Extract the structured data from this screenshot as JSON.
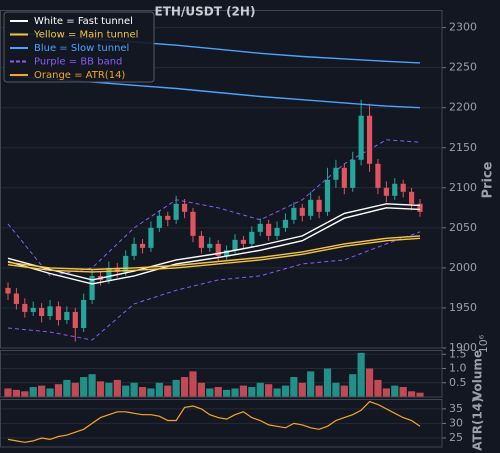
{
  "chart_data": [
    {
      "type": "candlestick",
      "title": "ETH/USDT (2H)",
      "ylabel": "Price",
      "up_color": "#26a69a",
      "down_color": "#e0545f",
      "grid": true,
      "ylim": [
        1900,
        2322
      ],
      "yticks": [
        1900,
        1950,
        2000,
        2050,
        2100,
        2150,
        2200,
        2250,
        2300
      ],
      "open": [
        1975,
        1968,
        1955,
        1945,
        1950,
        1940,
        1952,
        1935,
        1945,
        1925,
        1960,
        1990,
        1985,
        2000,
        1995,
        2015,
        2030,
        2025,
        2050,
        2065,
        2060,
        2080,
        2070,
        2040,
        2025,
        2030,
        2015,
        2022,
        2035,
        2030,
        2045,
        2055,
        2040,
        2050,
        2060,
        2075,
        2065,
        2085,
        2070,
        2110,
        2125,
        2100,
        2135,
        2190,
        2130,
        2100,
        2090,
        2105,
        2095,
        2080
      ],
      "high": [
        1982,
        1975,
        1962,
        1958,
        1956,
        1960,
        1958,
        1952,
        1950,
        1968,
        1998,
        1996,
        2008,
        2006,
        2022,
        2038,
        2036,
        2058,
        2072,
        2070,
        2090,
        2086,
        2075,
        2046,
        2038,
        2035,
        2028,
        2042,
        2040,
        2052,
        2062,
        2060,
        2058,
        2068,
        2082,
        2080,
        2095,
        2090,
        2125,
        2135,
        2130,
        2145,
        2210,
        2205,
        2136,
        2108,
        2112,
        2110,
        2100,
        2086
      ],
      "low": [
        1960,
        1948,
        1938,
        1940,
        1932,
        1935,
        1928,
        1930,
        1908,
        1920,
        1955,
        1978,
        1980,
        1988,
        1990,
        2010,
        2018,
        2020,
        2045,
        2052,
        2055,
        2062,
        2032,
        2018,
        2020,
        2008,
        2010,
        2018,
        2024,
        2026,
        2040,
        2034,
        2035,
        2045,
        2055,
        2058,
        2060,
        2062,
        2065,
        2100,
        2092,
        2095,
        2128,
        2120,
        2092,
        2082,
        2085,
        2088,
        2072,
        2064
      ],
      "close": [
        1968,
        1955,
        1945,
        1950,
        1940,
        1952,
        1935,
        1945,
        1925,
        1960,
        1990,
        1985,
        2000,
        1995,
        2015,
        2030,
        2025,
        2050,
        2065,
        2060,
        2080,
        2070,
        2040,
        2025,
        2030,
        2015,
        2022,
        2035,
        2030,
        2045,
        2055,
        2040,
        2050,
        2060,
        2075,
        2065,
        2085,
        2070,
        2110,
        2125,
        2100,
        2135,
        2190,
        2130,
        2100,
        2090,
        2105,
        2095,
        2080,
        2070
      ],
      "series": [
        {
          "name": "White = Fast tunnel",
          "color": "#ffffff",
          "dashed": false,
          "x": [
            0,
            5,
            10,
            15,
            20,
            25,
            30,
            35,
            40,
            45,
            49
          ],
          "upper": [
            2012,
            1998,
            1985,
            1996,
            2010,
            2018,
            2028,
            2040,
            2068,
            2080,
            2078
          ],
          "lower": [
            2008,
            1993,
            1980,
            1990,
            2005,
            2013,
            2022,
            2034,
            2062,
            2075,
            2073
          ]
        },
        {
          "name": "Yellow = Main tunnel",
          "color": "#f5c542",
          "dashed": false,
          "x": [
            0,
            5,
            10,
            15,
            20,
            25,
            30,
            35,
            40,
            45,
            49
          ],
          "upper": [
            2007,
            2000,
            1998,
            2000,
            2003,
            2008,
            2013,
            2020,
            2030,
            2037,
            2040
          ],
          "lower": [
            2004,
            1997,
            1995,
            1997,
            2000,
            2005,
            2010,
            2017,
            2027,
            2034,
            2037
          ]
        },
        {
          "name": "Blue = Slow tunnel",
          "color": "#4aa3ff",
          "dashed": false,
          "x": [
            0,
            5,
            10,
            15,
            20,
            25,
            30,
            35,
            40,
            45,
            49
          ],
          "upper": [
            2294,
            2290,
            2286,
            2282,
            2278,
            2273,
            2268,
            2264,
            2261,
            2258,
            2256
          ],
          "lower": [
            2240,
            2236,
            2232,
            2228,
            2224,
            2219,
            2214,
            2210,
            2206,
            2202,
            2200
          ]
        },
        {
          "name": "Purple = BB band",
          "color": "#8a5cf5",
          "dashed": true,
          "x": [
            0,
            5,
            10,
            15,
            20,
            25,
            30,
            35,
            40,
            45,
            49
          ],
          "upper": [
            2055,
            1990,
            2000,
            2050,
            2085,
            2075,
            2060,
            2085,
            2130,
            2160,
            2157
          ],
          "lower": [
            1925,
            1920,
            1910,
            1955,
            1972,
            1985,
            1990,
            2005,
            2010,
            2030,
            2045
          ]
        }
      ]
    },
    {
      "type": "bar",
      "ylabel": "Volume",
      "offset_label": "10⁶",
      "ylim": [
        0,
        1.65
      ],
      "yticks": [
        0.5,
        {
          "value": 1,
          "label": "1.0"
        },
        1.5
      ],
      "values": [
        0.3,
        0.25,
        0.2,
        0.35,
        0.4,
        0.3,
        0.45,
        0.6,
        0.5,
        0.7,
        0.8,
        0.55,
        0.5,
        0.6,
        0.4,
        0.5,
        0.35,
        0.3,
        0.5,
        0.4,
        0.6,
        0.7,
        0.9,
        0.5,
        0.3,
        0.35,
        0.25,
        0.3,
        0.4,
        0.35,
        0.5,
        0.45,
        0.3,
        0.4,
        0.7,
        0.5,
        0.9,
        0.4,
        1.0,
        0.5,
        0.4,
        0.8,
        1.55,
        1.0,
        0.6,
        0.3,
        0.4,
        0.35,
        0.2,
        0.15
      ]
    },
    {
      "type": "line",
      "ylabel": "ATR(14)",
      "ylim": [
        21.9,
        38.4
      ],
      "yticks": [
        25,
        30,
        35
      ],
      "series": [
        {
          "name": "Orange = ATR(14)",
          "color": "#f5a623",
          "values": [
            24.5,
            24,
            23.5,
            24,
            25,
            24.5,
            25.5,
            26,
            27,
            28,
            30,
            32,
            33,
            34,
            34,
            33.5,
            33,
            33,
            32.5,
            31,
            31,
            35.5,
            36,
            35,
            33,
            32,
            31.5,
            33,
            34,
            32,
            31,
            29.5,
            29,
            28.5,
            30,
            29.5,
            28.5,
            28,
            29,
            31,
            32,
            33,
            34.5,
            37.5,
            36.5,
            35,
            33.5,
            32,
            31,
            29
          ]
        }
      ]
    }
  ]
}
